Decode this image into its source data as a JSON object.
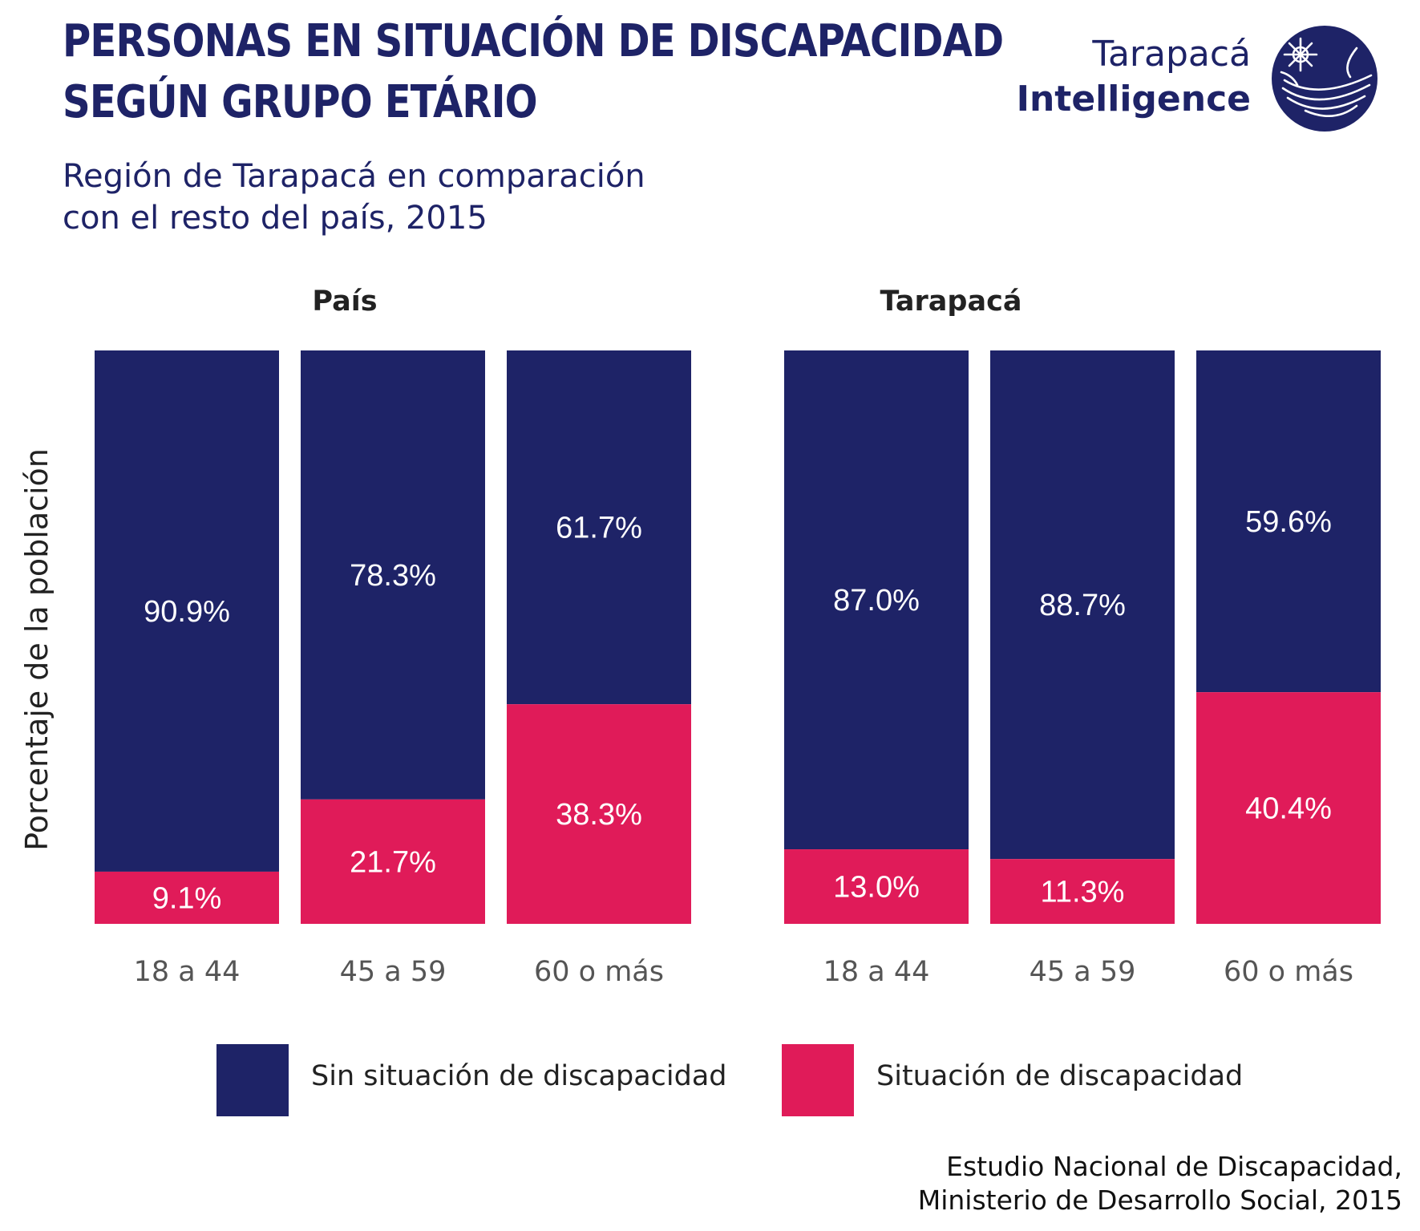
{
  "header": {
    "title_line1": "PERSONAS EN SITUACIÓN DE DISCAPACIDAD",
    "title_line2": "SEGÚN GRUPO ETÁRIO",
    "subtitle_line1": "Región de Tarapacá en comparación",
    "subtitle_line2": "con el resto del país, 2015"
  },
  "logo": {
    "line1": "Tarapacá",
    "line2": "Intelligence",
    "icon": "globe-emblem-icon"
  },
  "colors": {
    "sin": "#1e2367",
    "con": "#e01b59",
    "text": "#222222"
  },
  "chart_data": {
    "type": "bar",
    "stacked": true,
    "ylabel": "Porcentaje de la población",
    "ylim": [
      0,
      100
    ],
    "grid": false,
    "legend_position": "bottom",
    "categories": [
      "18 a 44",
      "45 a 59",
      "60 o más"
    ],
    "series_names": [
      "Sin situación de discapacidad",
      "Situación de discapacidad"
    ],
    "panels": [
      {
        "title": "País",
        "series": [
          {
            "name": "Sin situación de discapacidad",
            "values": [
              90.9,
              78.3,
              61.7
            ],
            "labels": [
              "90.9%",
              "78.3%",
              "61.7%"
            ]
          },
          {
            "name": "Situación de discapacidad",
            "values": [
              9.1,
              21.7,
              38.3
            ],
            "labels": [
              "9.1%",
              "21.7%",
              "38.3%"
            ]
          }
        ]
      },
      {
        "title": "Tarapacá",
        "series": [
          {
            "name": "Sin situación de discapacidad",
            "values": [
              87.0,
              88.7,
              59.6
            ],
            "labels": [
              "87.0%",
              "88.7%",
              "59.6%"
            ]
          },
          {
            "name": "Situación de discapacidad",
            "values": [
              13.0,
              11.3,
              40.4
            ],
            "labels": [
              "13.0%",
              "11.3%",
              "40.4%"
            ]
          }
        ]
      }
    ]
  },
  "source": {
    "line1": "Estudio Nacional de Discapacidad,",
    "line2": "Ministerio de Desarrollo Social, 2015"
  }
}
